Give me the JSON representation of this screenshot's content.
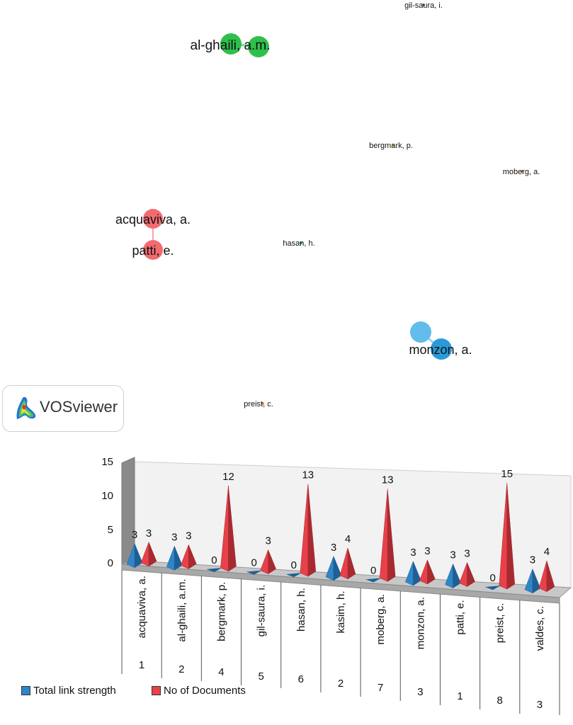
{
  "network": {
    "nodes": [
      {
        "label": "al-ghaili, a.m.",
        "color": "#2ec04b"
      },
      {
        "label": "gil-saura, i.",
        "color": "#8a5fb5"
      },
      {
        "label": "bergmark, p.",
        "color": "#c9b300"
      },
      {
        "label": "moberg, a.",
        "color": "#e07b2a"
      },
      {
        "label": "acquaviva, a.",
        "color": "#f0595f"
      },
      {
        "label": "patti, e.",
        "color": "#f0595f"
      },
      {
        "label": "hasan, h.",
        "color": "#14a0a0"
      },
      {
        "label": "monzon, a.",
        "color": "#3ba3dc"
      },
      {
        "label": "preist, c.",
        "color": "#c48a4a"
      }
    ],
    "logo_text": "VOSviewer"
  },
  "chart_data": {
    "type": "bar",
    "style": "3d-pyramid",
    "categories": [
      "acquaviva, a.",
      "al-ghaili, a.m.",
      "bergmark, p.",
      "gil-saura, i.",
      "hasan, h.",
      "kasim, h.",
      "moberg, a.",
      "monzon, a.",
      "patti, e.",
      "preist, c.",
      "valdes, c."
    ],
    "table_row": [
      "1",
      "2",
      "4",
      "5",
      "6",
      "2",
      "7",
      "3",
      "1",
      "8",
      "3"
    ],
    "series": [
      {
        "name": "Total link strength",
        "color": "#2e86c8",
        "values": [
          3,
          3,
          0,
          0,
          0,
          3,
          0,
          3,
          3,
          0,
          3
        ]
      },
      {
        "name": "No of Documents",
        "color": "#e8414a",
        "values": [
          3,
          3,
          12,
          3,
          13,
          4,
          13,
          3,
          3,
          15,
          4
        ]
      }
    ],
    "yticks": [
      "0",
      "5",
      "10",
      "15"
    ],
    "ylim": [
      0,
      15
    ],
    "legend_position": "bottom-left"
  }
}
